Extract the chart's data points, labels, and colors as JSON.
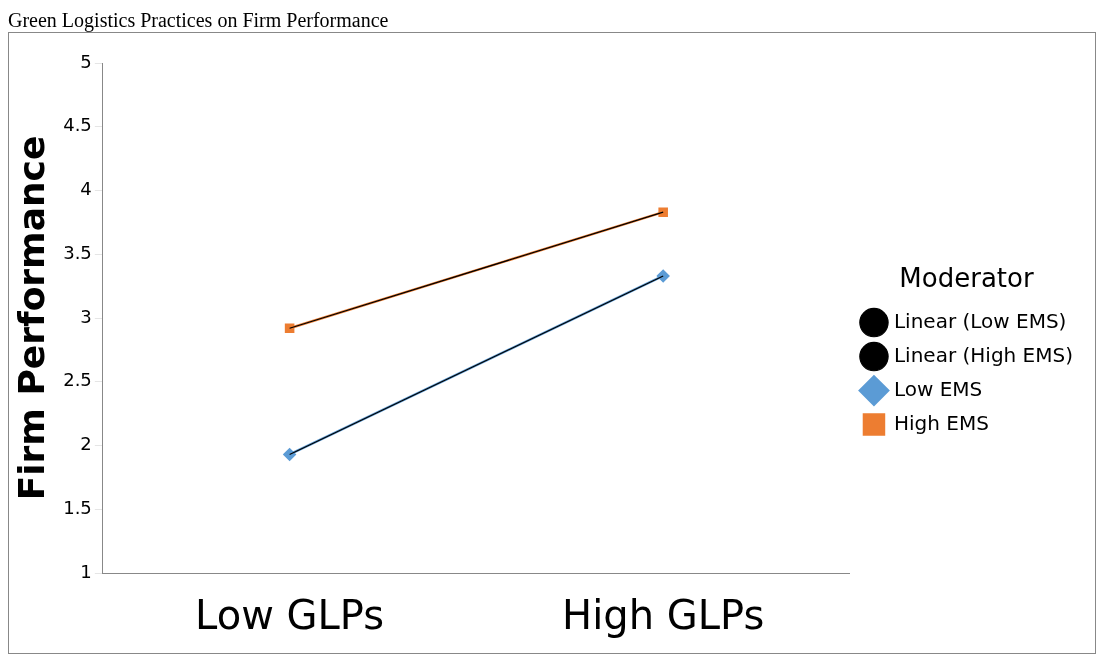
{
  "chart_data": {
    "type": "line",
    "title": "Green Logistics Practices on Firm Performance",
    "ylabel": "Firm Performance",
    "categories": [
      "Low GLPs",
      "High GLPs"
    ],
    "series": [
      {
        "name": "Low EMS",
        "color": "#5b9bd5",
        "values": [
          1.93,
          3.33
        ],
        "marker": "diamond"
      },
      {
        "name": "High EMS",
        "color": "#ed7d31",
        "values": [
          2.92,
          3.83
        ],
        "marker": "square"
      },
      {
        "name": "Linear (Low EMS)",
        "type": "line",
        "color": "#000000",
        "x": [
          "Low GLPs",
          "High GLPs"
        ],
        "values": [
          1.93,
          3.33
        ],
        "marker": "none"
      },
      {
        "name": "Linear (High EMS)",
        "type": "line",
        "color": "#000000",
        "x": [
          "Low GLPs",
          "High GLPs"
        ],
        "values": [
          2.92,
          3.83
        ],
        "marker": "none"
      }
    ],
    "ylim": [
      1,
      5
    ],
    "yticks": [
      1,
      1.5,
      2,
      2.5,
      3,
      3.5,
      4,
      4.5,
      5
    ],
    "grid": false,
    "legend": "right",
    "legend_title": "Moderator"
  }
}
